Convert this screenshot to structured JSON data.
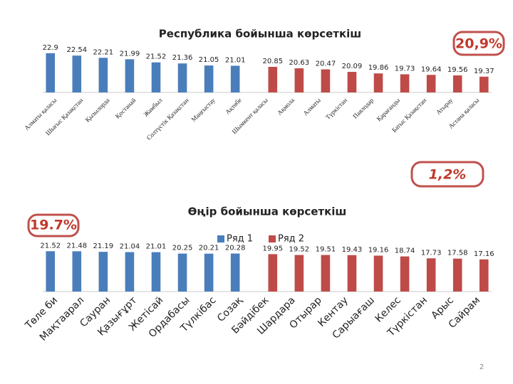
{
  "chart_data": [
    {
      "type": "bar",
      "title": "Республика бойынша көрсеткіш",
      "categories": [
        "Алматы қаласы",
        "Шығыс Қазақстан",
        "Қызылорда",
        "Қостанай",
        "Жамбыл",
        "Солтүстік Қазақстан",
        "Маңғыстау",
        "Ақтөбе",
        "Шымкент қаласы",
        "Ақмола",
        "Алматы",
        "Түркістан",
        "Павлодар",
        "Қарағанды",
        "Батыс Қазақстан",
        "Атырау",
        "Астана қаласы"
      ],
      "series": [
        {
          "color": "#4a7ebb",
          "values": [
            22.9,
            22.54,
            22.21,
            21.99,
            21.52,
            21.36,
            21.05,
            21.01,
            null,
            null,
            null,
            null,
            null,
            null,
            null,
            null,
            null
          ]
        },
        {
          "color": "#be4b48",
          "values": [
            null,
            null,
            null,
            null,
            null,
            null,
            null,
            null,
            20.85,
            20.63,
            20.47,
            20.09,
            19.86,
            19.73,
            19.64,
            19.56,
            19.37
          ]
        }
      ],
      "ylim": [
        17,
        23.2
      ]
    },
    {
      "type": "bar",
      "title": "Өңір бойынша көрсеткіш",
      "categories": [
        "Төле би",
        "Мақтаарал",
        "Сауран",
        "Қазығұрт",
        "Жетісай",
        "Ордабасы",
        "Түлкібас",
        "Созақ",
        "Бәйдібек",
        "Шардара",
        "Отырар",
        "Кентау",
        "Сарыағаш",
        "Келес",
        "Түркістан",
        "Арыс",
        "Сайрам"
      ],
      "series": [
        {
          "name": "Ряд 1",
          "color": "#4a7ebb",
          "values": [
            21.52,
            21.48,
            21.19,
            21.04,
            21.01,
            20.25,
            20.21,
            20.28,
            null,
            null,
            null,
            null,
            null,
            null,
            null,
            null,
            null
          ]
        },
        {
          "name": "Ряд 2",
          "color": "#be4b48",
          "values": [
            null,
            null,
            null,
            null,
            null,
            null,
            null,
            null,
            19.95,
            19.52,
            19.51,
            19.43,
            19.16,
            18.74,
            17.73,
            17.58,
            17.16
          ]
        }
      ],
      "ylim": [
        0,
        22
      ]
    }
  ],
  "annotations": [
    "20,9%",
    "1,2%",
    "19.7%"
  ],
  "page_number": "2"
}
